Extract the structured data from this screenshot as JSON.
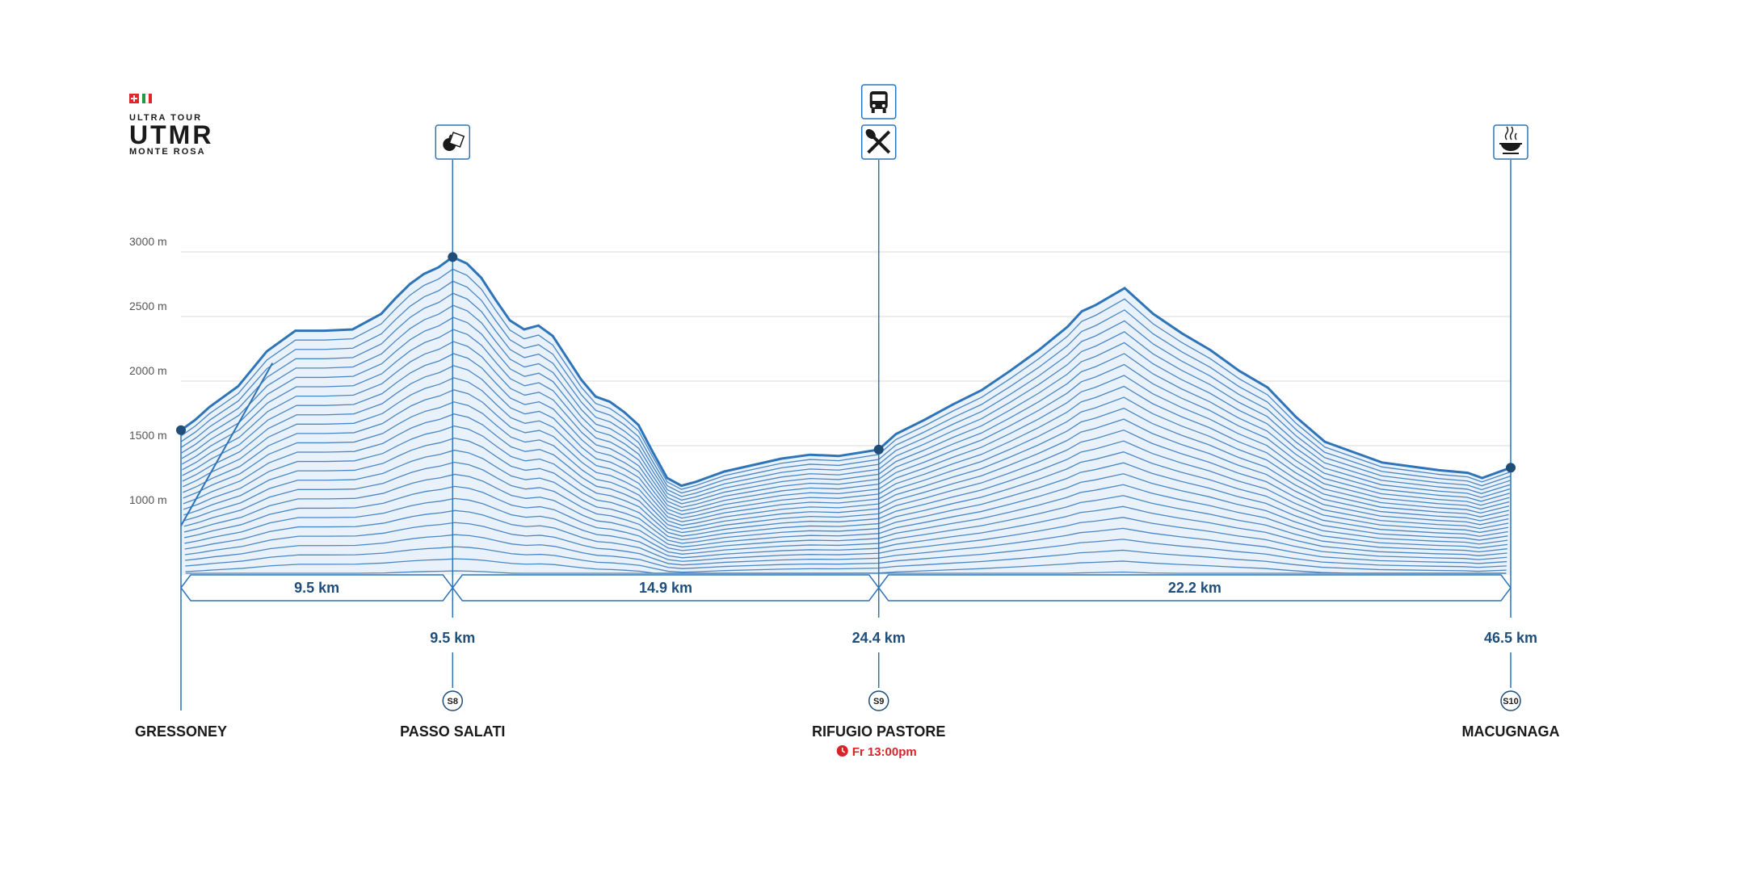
{
  "logo": {
    "top": "ULTRA TOUR",
    "main": "UTMR",
    "bottom": "MONTE ROSA",
    "flags": [
      "switzerland-flag",
      "italy-flag"
    ]
  },
  "colors": {
    "line": "#2e74b8",
    "fill": "#e9f1fa",
    "dark": "#1f4e79",
    "grid": "#d9d9d9",
    "text": "#1a1a1a",
    "cutoff": "#d8232a"
  },
  "chart_data": {
    "type": "area",
    "xlabel": "",
    "ylabel": "",
    "ylim": [
      530,
      3210
    ],
    "y_ticks": [
      {
        "value": 3000,
        "label": "3000 m"
      },
      {
        "value": 2500,
        "label": "2500 m"
      },
      {
        "value": 2000,
        "label": "2000 m"
      },
      {
        "value": 1500,
        "label": "1500 m"
      },
      {
        "value": 1000,
        "label": "1000 m"
      }
    ],
    "x_range": [
      0,
      46.5
    ],
    "series": [
      {
        "x": [
          0,
          0.5,
          1.0,
          1.5,
          2.0,
          3.0,
          4.0,
          4.5,
          5.0,
          6.0,
          7.0,
          7.5,
          8.0,
          8.5,
          9.0,
          9.5,
          10.0,
          10.5,
          11.0,
          11.5,
          12.0,
          12.5,
          13.0,
          13.5,
          14.0,
          14.5,
          15.0,
          15.5,
          16.0,
          16.5,
          17.0,
          17.5,
          18.0,
          18.5,
          19.0,
          20.0,
          21.0,
          22.0,
          23.0,
          24.4,
          25.0,
          26.0,
          27.0,
          28.0,
          29.0,
          30.0,
          31.0,
          31.5,
          32.0,
          33.0,
          34.0,
          35.0,
          36.0,
          37.0,
          38.0,
          39.0,
          40.0,
          41.0,
          42.0,
          43.0,
          44.0,
          45.0,
          45.5,
          46.5
        ],
        "y": [
          1620,
          1700,
          1800,
          1880,
          1960,
          2230,
          2390,
          2390,
          2390,
          2400,
          2520,
          2640,
          2750,
          2830,
          2880,
          2960,
          2910,
          2800,
          2630,
          2470,
          2400,
          2430,
          2350,
          2180,
          2010,
          1880,
          1840,
          1760,
          1660,
          1450,
          1250,
          1190,
          1220,
          1260,
          1300,
          1350,
          1400,
          1430,
          1420,
          1470,
          1590,
          1700,
          1820,
          1930,
          2080,
          2240,
          2420,
          2540,
          2590,
          2720,
          2520,
          2370,
          2240,
          2080,
          1950,
          1720,
          1530,
          1450,
          1370,
          1340,
          1310,
          1290,
          1250,
          1330
        ]
      }
    ],
    "aid_stations": [
      {
        "km": 0,
        "name": "GRESSONEY",
        "km_label": ""
      },
      {
        "km": 9.5,
        "name": "PASSO SALATI",
        "km_label": "9.5 km",
        "code": "S8",
        "icons": [
          "snack-icon"
        ]
      },
      {
        "km": 24.4,
        "name": "RIFUGIO PASTORE",
        "km_label": "24.4 km",
        "code": "S9",
        "icons": [
          "bus-icon",
          "fork-knife-icon"
        ],
        "cutoff": "Fr 13:00pm"
      },
      {
        "km": 46.5,
        "name": "MACUGNAGA",
        "km_label": "46.5 km",
        "code": "S10",
        "icons": [
          "hot-meal-icon"
        ]
      }
    ],
    "segments": [
      "9.5 km",
      "14.9 km",
      "22.2 km"
    ],
    "grid": true
  }
}
